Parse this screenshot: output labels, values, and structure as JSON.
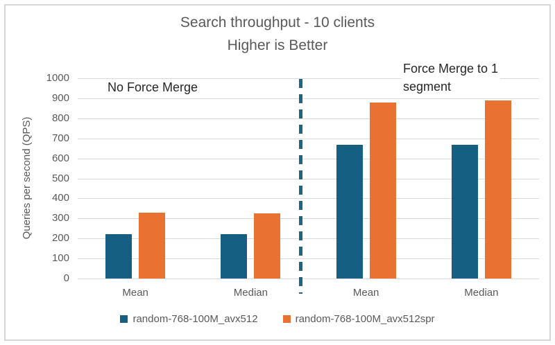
{
  "chart_data": {
    "type": "bar",
    "title": "Search throughput - 10 clients",
    "subtitle": "Higher is Better",
    "ylabel": "Queries per second (QPS)",
    "ylim": [
      0,
      1000
    ],
    "yticks": [
      0,
      100,
      200,
      300,
      400,
      500,
      600,
      700,
      800,
      900,
      1000
    ],
    "grid": true,
    "legend_position": "bottom",
    "categories": [
      "Mean",
      "Median",
      "Mean",
      "Median"
    ],
    "groups": [
      {
        "label": "No Force Merge",
        "categories": [
          0,
          1
        ]
      },
      {
        "label": "Force Merge to 1 segment",
        "categories": [
          2,
          3
        ]
      }
    ],
    "series": [
      {
        "name": "random-768-100M_avx512",
        "color": "#156082",
        "values": [
          220,
          220,
          668,
          668
        ]
      },
      {
        "name": "random-768-100M_avx512spr",
        "color": "#E97132",
        "values": [
          328,
          326,
          878,
          888
        ]
      }
    ],
    "divider": {
      "style": "dashed",
      "color": "#1B6687",
      "position": "between Median and Mean (center of plot)"
    }
  },
  "annotations": {
    "left_label": "No Force Merge",
    "right_label_line1": "Force Merge to 1",
    "right_label_line2": "segment"
  },
  "colors": {
    "background": "#FFFFFF",
    "frame_border": "#D5D5D5",
    "title_text": "#595959",
    "axis_text": "#595959",
    "annotation_text": "#262626",
    "gridline": "#D9D9D9",
    "series1": "#156082",
    "series2": "#E97132",
    "divider": "#1B6687"
  }
}
